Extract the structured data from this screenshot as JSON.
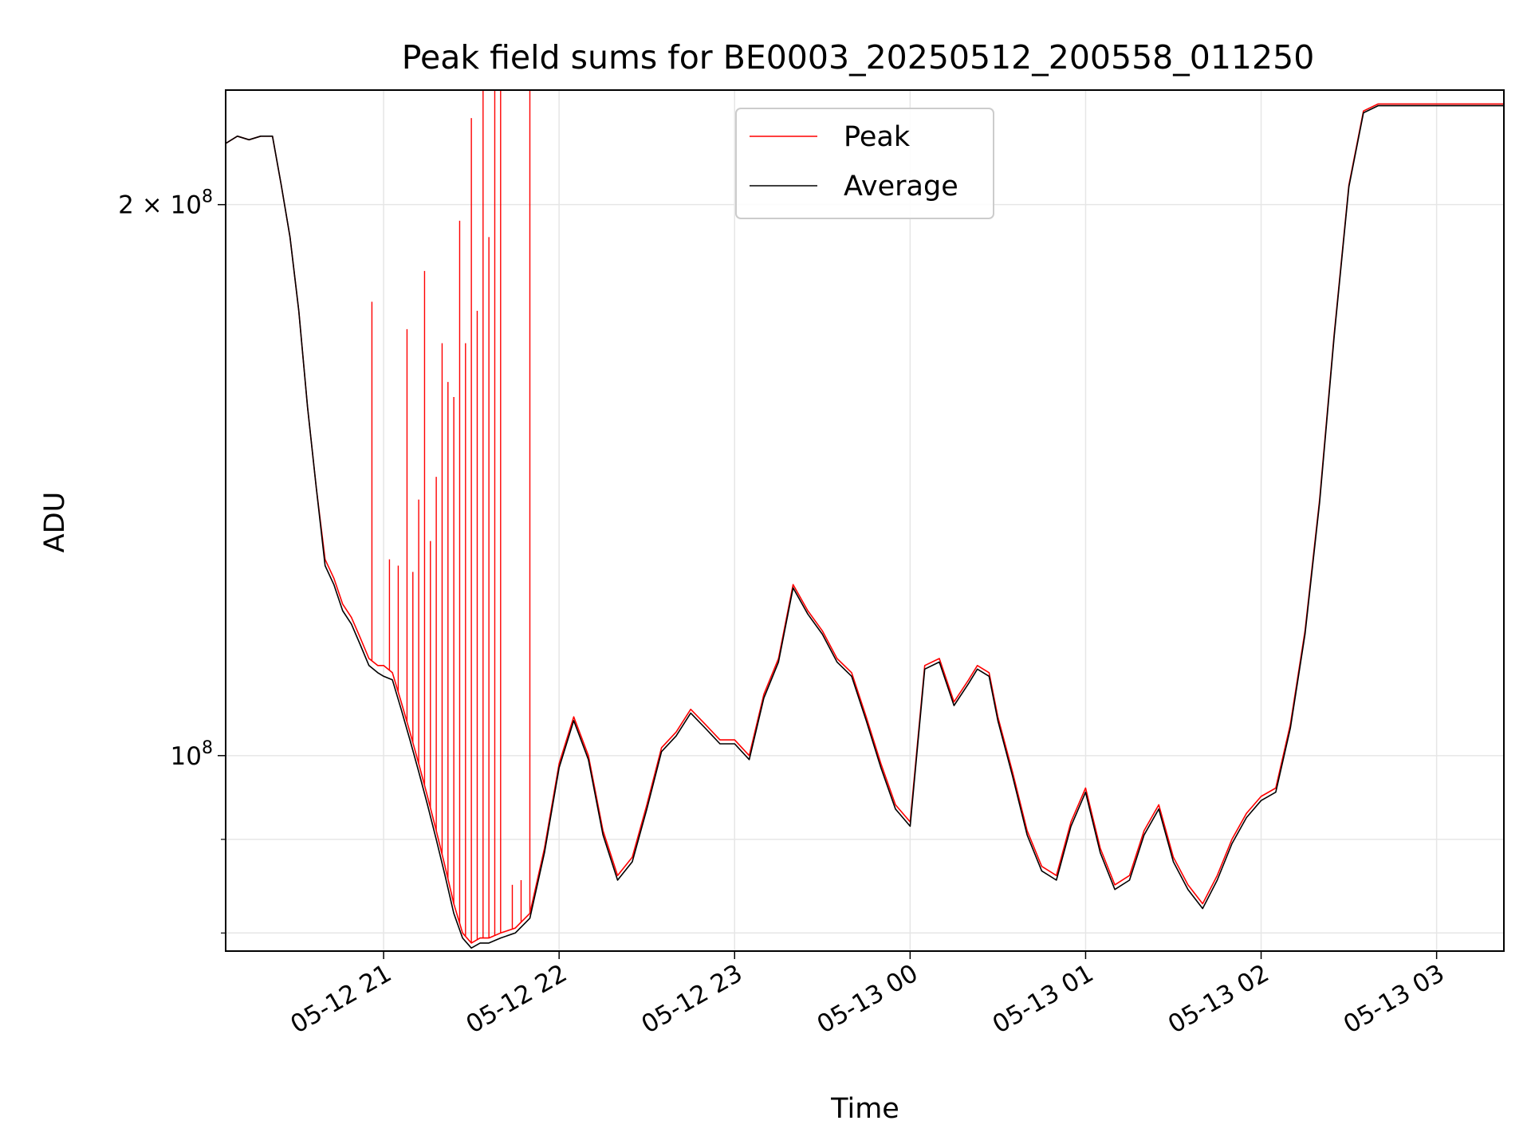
{
  "chart_data": {
    "type": "line",
    "title": "Peak field sums for BE0003_20250512_200558_011250",
    "xlabel": "Time",
    "ylabel": "ADU",
    "yscale": "log",
    "grid": true,
    "legend_position": "top-center",
    "xlim": [
      "2025-05-12 20:06",
      "2025-05-13 03:23"
    ],
    "ylim": [
      78200000,
      231000000
    ],
    "x_ticks": [
      {
        "value": "2025-05-12 21:00",
        "label": "05-12 21"
      },
      {
        "value": "2025-05-12 22:00",
        "label": "05-12 22"
      },
      {
        "value": "2025-05-12 23:00",
        "label": "05-12 23"
      },
      {
        "value": "2025-05-13 00:00",
        "label": "05-13 00"
      },
      {
        "value": "2025-05-13 01:00",
        "label": "05-13 01"
      },
      {
        "value": "2025-05-13 02:00",
        "label": "05-13 02"
      },
      {
        "value": "2025-05-13 03:00",
        "label": "05-13 03"
      }
    ],
    "y_ticks": [
      {
        "value": 200000000,
        "label": "2×10⁸",
        "base": "2 × 10",
        "exp": "8"
      },
      {
        "value": 100000000,
        "label": "10⁸",
        "base": "10",
        "exp": "8"
      }
    ],
    "y_minor_ticks": [
      80000000,
      90000000
    ],
    "series": [
      {
        "name": "Peak",
        "color": "#ff0000",
        "x": [
          "2025-05-12 20:06",
          "2025-05-12 20:10",
          "2025-05-12 20:14",
          "2025-05-12 20:18",
          "2025-05-12 20:22",
          "2025-05-12 20:25",
          "2025-05-12 20:28",
          "2025-05-12 20:31",
          "2025-05-12 20:34",
          "2025-05-12 20:37",
          "2025-05-12 20:40",
          "2025-05-12 20:43",
          "2025-05-12 20:46",
          "2025-05-12 20:49",
          "2025-05-12 20:52",
          "2025-05-12 20:55",
          "2025-05-12 20:58",
          "2025-05-12 21:00",
          "2025-05-12 21:03",
          "2025-05-12 21:06",
          "2025-05-12 21:09",
          "2025-05-12 21:12",
          "2025-05-12 21:15",
          "2025-05-12 21:18",
          "2025-05-12 21:21",
          "2025-05-12 21:24",
          "2025-05-12 21:27",
          "2025-05-12 21:30",
          "2025-05-12 21:33",
          "2025-05-12 21:36",
          "2025-05-12 21:40",
          "2025-05-12 21:45",
          "2025-05-12 21:50",
          "2025-05-12 21:55",
          "2025-05-12 22:00",
          "2025-05-12 22:05",
          "2025-05-12 22:10",
          "2025-05-12 22:15",
          "2025-05-12 22:20",
          "2025-05-12 22:25",
          "2025-05-12 22:30",
          "2025-05-12 22:35",
          "2025-05-12 22:40",
          "2025-05-12 22:45",
          "2025-05-12 22:50",
          "2025-05-12 22:55",
          "2025-05-12 23:00",
          "2025-05-12 23:05",
          "2025-05-12 23:10",
          "2025-05-12 23:15",
          "2025-05-12 23:20",
          "2025-05-12 23:25",
          "2025-05-12 23:30",
          "2025-05-12 23:35",
          "2025-05-12 23:40",
          "2025-05-12 23:45",
          "2025-05-12 23:50",
          "2025-05-12 23:55",
          "2025-05-13 00:00",
          "2025-05-13 00:05",
          "2025-05-13 00:10",
          "2025-05-13 00:15",
          "2025-05-13 00:20",
          "2025-05-13 00:23",
          "2025-05-13 00:27",
          "2025-05-13 00:30",
          "2025-05-13 00:35",
          "2025-05-13 00:40",
          "2025-05-13 00:45",
          "2025-05-13 00:50",
          "2025-05-13 00:55",
          "2025-05-13 01:00",
          "2025-05-13 01:05",
          "2025-05-13 01:10",
          "2025-05-13 01:15",
          "2025-05-13 01:20",
          "2025-05-13 01:25",
          "2025-05-13 01:30",
          "2025-05-13 01:35",
          "2025-05-13 01:40",
          "2025-05-13 01:45",
          "2025-05-13 01:50",
          "2025-05-13 01:55",
          "2025-05-13 02:00",
          "2025-05-13 02:05",
          "2025-05-13 02:10",
          "2025-05-13 02:15",
          "2025-05-13 02:20",
          "2025-05-13 02:25",
          "2025-05-13 02:30",
          "2025-05-13 02:35",
          "2025-05-13 02:40",
          "2025-05-13 02:45",
          "2025-05-13 02:50",
          "2025-05-13 02:55",
          "2025-05-13 03:00",
          "2025-05-13 03:05",
          "2025-05-13 03:10",
          "2025-05-13 03:15",
          "2025-05-13 03:23"
        ],
        "values": [
          216000000,
          218000000,
          217000000,
          218000000,
          218000000,
          205000000,
          192000000,
          175000000,
          155000000,
          140000000,
          128000000,
          125000000,
          121000000,
          119000000,
          116000000,
          113000000,
          112000000,
          112000000,
          111000000,
          107000000,
          103000000,
          99000000,
          95000000,
          91000000,
          87000000,
          83000000,
          80000000,
          79000000,
          79500000,
          79500000,
          80000000,
          80500000,
          82000000,
          89000000,
          99000000,
          105000000,
          100000000,
          91000000,
          86000000,
          88000000,
          94000000,
          101000000,
          103000000,
          106000000,
          104000000,
          102000000,
          102000000,
          100000000,
          108000000,
          113000000,
          124000000,
          120000000,
          117000000,
          113000000,
          111000000,
          105000000,
          99000000,
          94000000,
          92000000,
          112000000,
          113000000,
          107000000,
          110000000,
          112000000,
          111000000,
          105000000,
          98000000,
          91000000,
          87000000,
          86000000,
          92000000,
          96000000,
          89000000,
          85000000,
          86000000,
          91000000,
          94000000,
          88000000,
          85000000,
          83000000,
          86000000,
          90000000,
          93000000,
          95000000,
          96000000,
          104000000,
          117000000,
          138000000,
          170000000,
          205000000,
          225000000,
          227000000,
          227000000,
          227000000,
          227000000,
          227000000,
          227000000,
          227000000,
          227000000,
          227000000
        ],
        "spikes": [
          {
            "x": "2025-05-12 20:56",
            "value": 177000000
          },
          {
            "x": "2025-05-12 21:02",
            "value": 128000000
          },
          {
            "x": "2025-05-12 21:05",
            "value": 127000000
          },
          {
            "x": "2025-05-12 21:08",
            "value": 171000000
          },
          {
            "x": "2025-05-12 21:10",
            "value": 126000000
          },
          {
            "x": "2025-05-12 21:12",
            "value": 138000000
          },
          {
            "x": "2025-05-12 21:14",
            "value": 184000000
          },
          {
            "x": "2025-05-12 21:16",
            "value": 131000000
          },
          {
            "x": "2025-05-12 21:18",
            "value": 142000000
          },
          {
            "x": "2025-05-12 21:20",
            "value": 168000000
          },
          {
            "x": "2025-05-12 21:22",
            "value": 160000000
          },
          {
            "x": "2025-05-12 21:24",
            "value": 157000000
          },
          {
            "x": "2025-05-12 21:26",
            "value": 196000000
          },
          {
            "x": "2025-05-12 21:28",
            "value": 168000000
          },
          {
            "x": "2025-05-12 21:30",
            "value": 223000000
          },
          {
            "x": "2025-05-12 21:32",
            "value": 175000000
          },
          {
            "x": "2025-05-12 21:34",
            "value": 231000000
          },
          {
            "x": "2025-05-12 21:36",
            "value": 192000000
          },
          {
            "x": "2025-05-12 21:38",
            "value": 231000000
          },
          {
            "x": "2025-05-12 21:40",
            "value": 231000000
          },
          {
            "x": "2025-05-12 21:44",
            "value": 85000000
          },
          {
            "x": "2025-05-12 21:47",
            "value": 85500000
          },
          {
            "x": "2025-05-12 21:50",
            "value": 231000000
          }
        ]
      },
      {
        "name": "Average",
        "color": "#000000",
        "x": [
          "2025-05-12 20:06",
          "2025-05-12 20:10",
          "2025-05-12 20:14",
          "2025-05-12 20:18",
          "2025-05-12 20:22",
          "2025-05-12 20:25",
          "2025-05-12 20:28",
          "2025-05-12 20:31",
          "2025-05-12 20:34",
          "2025-05-12 20:37",
          "2025-05-12 20:40",
          "2025-05-12 20:43",
          "2025-05-12 20:46",
          "2025-05-12 20:49",
          "2025-05-12 20:52",
          "2025-05-12 20:55",
          "2025-05-12 20:58",
          "2025-05-12 21:00",
          "2025-05-12 21:03",
          "2025-05-12 21:06",
          "2025-05-12 21:09",
          "2025-05-12 21:12",
          "2025-05-12 21:15",
          "2025-05-12 21:18",
          "2025-05-12 21:21",
          "2025-05-12 21:24",
          "2025-05-12 21:27",
          "2025-05-12 21:30",
          "2025-05-12 21:33",
          "2025-05-12 21:36",
          "2025-05-12 21:40",
          "2025-05-12 21:45",
          "2025-05-12 21:50",
          "2025-05-12 21:55",
          "2025-05-12 22:00",
          "2025-05-12 22:05",
          "2025-05-12 22:10",
          "2025-05-12 22:15",
          "2025-05-12 22:20",
          "2025-05-12 22:25",
          "2025-05-12 22:30",
          "2025-05-12 22:35",
          "2025-05-12 22:40",
          "2025-05-12 22:45",
          "2025-05-12 22:50",
          "2025-05-12 22:55",
          "2025-05-12 23:00",
          "2025-05-12 23:05",
          "2025-05-12 23:10",
          "2025-05-12 23:15",
          "2025-05-12 23:20",
          "2025-05-12 23:25",
          "2025-05-12 23:30",
          "2025-05-12 23:35",
          "2025-05-12 23:40",
          "2025-05-12 23:45",
          "2025-05-12 23:50",
          "2025-05-12 23:55",
          "2025-05-13 00:00",
          "2025-05-13 00:05",
          "2025-05-13 00:10",
          "2025-05-13 00:15",
          "2025-05-13 00:20",
          "2025-05-13 00:23",
          "2025-05-13 00:27",
          "2025-05-13 00:30",
          "2025-05-13 00:35",
          "2025-05-13 00:40",
          "2025-05-13 00:45",
          "2025-05-13 00:50",
          "2025-05-13 00:55",
          "2025-05-13 01:00",
          "2025-05-13 01:05",
          "2025-05-13 01:10",
          "2025-05-13 01:15",
          "2025-05-13 01:20",
          "2025-05-13 01:25",
          "2025-05-13 01:30",
          "2025-05-13 01:35",
          "2025-05-13 01:40",
          "2025-05-13 01:45",
          "2025-05-13 01:50",
          "2025-05-13 01:55",
          "2025-05-13 02:00",
          "2025-05-13 02:05",
          "2025-05-13 02:10",
          "2025-05-13 02:15",
          "2025-05-13 02:20",
          "2025-05-13 02:25",
          "2025-05-13 02:30",
          "2025-05-13 02:35",
          "2025-05-13 02:40",
          "2025-05-13 02:45",
          "2025-05-13 02:50",
          "2025-05-13 02:55",
          "2025-05-13 03:00",
          "2025-05-13 03:05",
          "2025-05-13 03:10",
          "2025-05-13 03:15",
          "2025-05-13 03:23"
        ],
        "values": [
          216000000,
          218000000,
          217000000,
          218000000,
          218000000,
          205000000,
          192000000,
          175000000,
          155000000,
          140000000,
          127000000,
          124000000,
          120000000,
          118000000,
          115000000,
          112000000,
          111000000,
          110500000,
          110000000,
          106000000,
          102000000,
          98000000,
          94000000,
          90000000,
          86000000,
          82000000,
          79500000,
          78500000,
          79000000,
          79000000,
          79500000,
          80000000,
          81500000,
          88500000,
          98500000,
          104500000,
          99500000,
          90500000,
          85500000,
          87500000,
          93500000,
          100500000,
          102500000,
          105500000,
          103500000,
          101500000,
          101500000,
          99500000,
          107500000,
          112500000,
          123500000,
          119500000,
          116500000,
          112500000,
          110500000,
          104500000,
          98500000,
          93500000,
          91500000,
          111500000,
          112500000,
          106500000,
          109500000,
          111500000,
          110500000,
          104500000,
          97500000,
          90500000,
          86500000,
          85500000,
          91500000,
          95500000,
          88500000,
          84500000,
          85500000,
          90500000,
          93500000,
          87500000,
          84500000,
          82500000,
          85500000,
          89500000,
          92500000,
          94500000,
          95500000,
          103500000,
          116500000,
          137500000,
          169500000,
          204500000,
          224500000,
          226500000,
          226500000,
          226500000,
          226500000,
          226500000,
          226500000,
          226500000,
          226500000,
          226500000
        ]
      }
    ]
  }
}
